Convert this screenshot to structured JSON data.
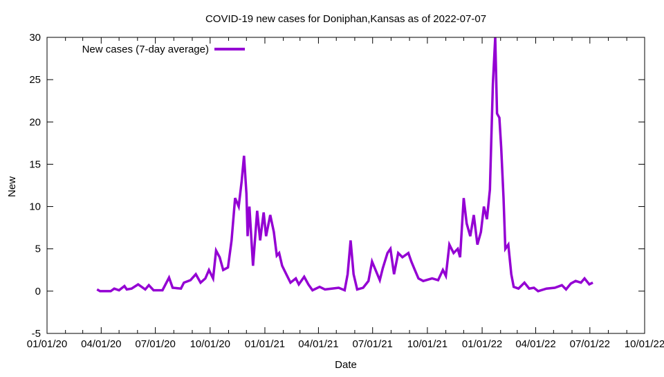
{
  "chart_data": {
    "type": "line",
    "title": "COVID-19 new cases for Doniphan,Kansas as of 2022-07-07",
    "xlabel": "Date",
    "ylabel": "New",
    "xlim": [
      "01/01/20",
      "10/01/22"
    ],
    "ylim": [
      -5,
      30
    ],
    "x_ticks": [
      "01/01/20",
      "04/01/20",
      "07/01/20",
      "10/01/20",
      "01/01/21",
      "04/01/21",
      "07/01/21",
      "10/01/21",
      "01/01/22",
      "04/01/22",
      "07/01/22",
      "10/01/22"
    ],
    "y_ticks": [
      -5,
      0,
      5,
      10,
      15,
      20,
      25,
      30
    ],
    "grid": false,
    "legend_position": "top-left",
    "series": [
      {
        "name": "New cases (7-day average)",
        "color": "#9400d3",
        "x": [
          "03/25/20",
          "03/30/20",
          "04/17/20",
          "04/23/20",
          "05/01/20",
          "05/10/20",
          "05/14/20",
          "05/22/20",
          "06/02/20",
          "06/14/20",
          "06/20/20",
          "06/28/20",
          "07/13/20",
          "07/24/20",
          "07/30/20",
          "08/13/20",
          "08/18/20",
          "08/29/20",
          "09/07/20",
          "09/15/20",
          "09/23/20",
          "09/29/20",
          "10/06/20",
          "10/11/20",
          "10/17/20",
          "10/23/20",
          "10/31/20",
          "11/06/20",
          "11/12/20",
          "11/18/20",
          "11/23/20",
          "11/27/20",
          "12/01/20",
          "12/03/20",
          "12/06/20",
          "12/12/20",
          "12/19/20",
          "12/24/20",
          "12/30/20",
          "01/03/21",
          "01/10/21",
          "01/16/21",
          "01/21/21",
          "01/25/21",
          "01/30/21",
          "02/06/21",
          "02/13/21",
          "02/22/21",
          "02/27/21",
          "03/08/21",
          "03/15/21",
          "03/22/21",
          "04/03/21",
          "04/12/21",
          "05/05/21",
          "05/15/21",
          "05/20/21",
          "05/25/21",
          "05/30/21",
          "06/05/21",
          "06/15/21",
          "06/24/21",
          "06/30/21",
          "07/06/21",
          "07/13/21",
          "07/18/21",
          "07/26/21",
          "07/31/21",
          "08/06/21",
          "08/13/21",
          "08/20/21",
          "08/30/21",
          "09/04/21",
          "09/10/21",
          "09/16/21",
          "09/24/21",
          "10/09/21",
          "10/19/21",
          "10/27/21",
          "11/01/21",
          "11/07/21",
          "11/14/21",
          "11/21/21",
          "11/25/21",
          "12/01/21",
          "12/06/21",
          "12/12/21",
          "12/18/21",
          "12/24/21",
          "12/30/21",
          "01/04/22",
          "01/09/22",
          "01/14/22",
          "01/16/22",
          "01/19/22",
          "01/23/22",
          "01/26/22",
          "01/30/22",
          "02/02/22",
          "02/06/22",
          "02/09/22",
          "02/14/22",
          "02/19/22",
          "02/23/22",
          "03/03/22",
          "03/13/22",
          "03/21/22",
          "03/29/22",
          "04/05/22",
          "04/19/22",
          "05/03/22",
          "05/15/22",
          "05/22/22",
          "05/30/22",
          "06/07/22",
          "06/16/22",
          "06/22/22",
          "06/30/22",
          "07/06/22"
        ],
        "y": [
          0.2,
          0,
          0,
          0.3,
          0.1,
          0.6,
          0.2,
          0.3,
          0.8,
          0.2,
          0.7,
          0.1,
          0.1,
          1.6,
          0.4,
          0.3,
          1.0,
          1.3,
          2.0,
          1.0,
          1.5,
          2.5,
          1.5,
          4.8,
          4.0,
          2.5,
          2.8,
          6.0,
          11.0,
          10.0,
          13.0,
          16.0,
          11.5,
          6.5,
          10.0,
          3.0,
          9.5,
          6.0,
          9.3,
          6.5,
          9.0,
          7.0,
          4.2,
          4.5,
          3.0,
          2.0,
          1.0,
          1.5,
          0.8,
          1.7,
          0.8,
          0.1,
          0.5,
          0.2,
          0.4,
          0.1,
          2.0,
          6.0,
          2.0,
          0.2,
          0.4,
          1.2,
          3.5,
          2.5,
          1.3,
          2.7,
          4.5,
          5.0,
          2.0,
          4.5,
          4.0,
          4.5,
          3.5,
          2.5,
          1.5,
          1.2,
          1.5,
          1.3,
          2.5,
          1.8,
          5.5,
          4.5,
          5.0,
          4.0,
          11.0,
          8.0,
          6.5,
          9.0,
          5.5,
          7.0,
          10.0,
          8.5,
          12.0,
          17.0,
          24.5,
          30.0,
          21.0,
          20.5,
          17.0,
          11.0,
          5.0,
          5.5,
          2.0,
          0.5,
          0.3,
          1.0,
          0.3,
          0.4,
          0,
          0.3,
          0.4,
          0.7,
          0.2,
          0.9,
          1.2,
          1.0,
          1.5,
          0.8,
          1.0
        ]
      }
    ]
  }
}
